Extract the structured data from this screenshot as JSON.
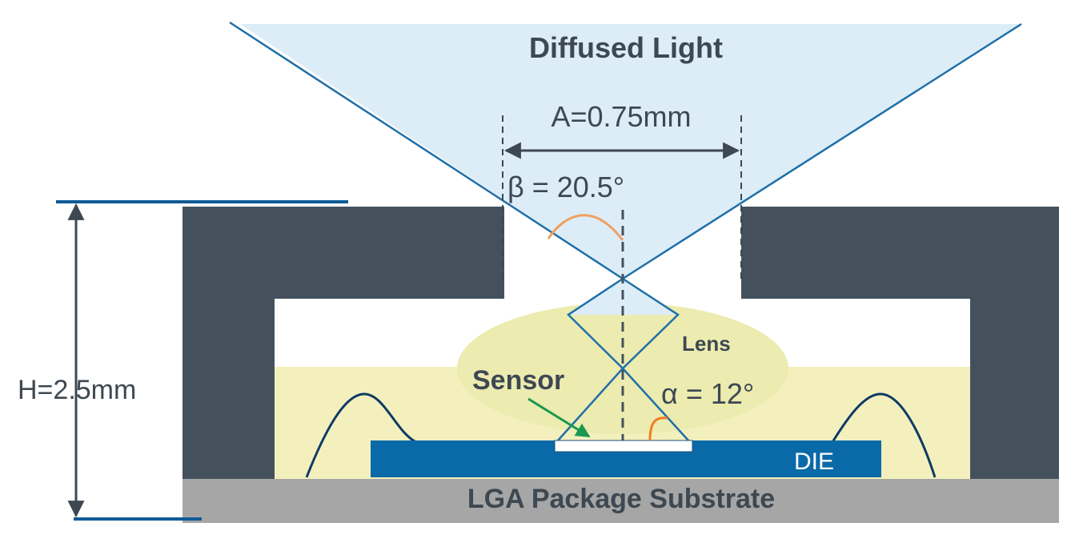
{
  "labels": {
    "diffused_light": "Diffused Light",
    "aperture": "A=0.75mm",
    "beta": "β = 20.5°",
    "lens": "Lens",
    "sensor": "Sensor",
    "alpha": "α = 12°",
    "die": "DIE",
    "substrate": "LGA Package Substrate",
    "height": "H=2.5mm"
  },
  "colors": {
    "light_cone_fill": "#dcedf8",
    "cone_line": "#1f6fa8",
    "package_body": "#44515d",
    "encapsulant": "#f3f0bd",
    "lens_fill": "#ecebb0",
    "die": "#0a6aa8",
    "substrate": "#a6a6a6",
    "angle_arc_beta": "#f0a060",
    "angle_arc_alpha": "#ef7d22",
    "sensor_arrow": "#1a9850",
    "dimension_line": "#3d4852",
    "guide_line": "#0f5a96"
  }
}
